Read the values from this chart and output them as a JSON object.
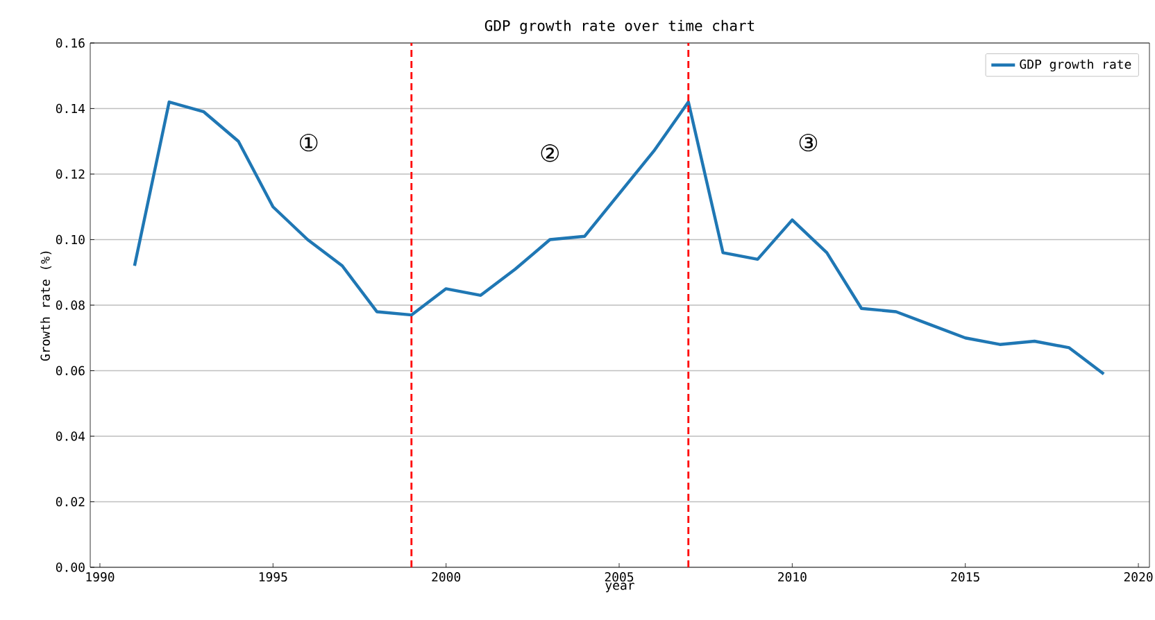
{
  "chart_data": {
    "type": "line",
    "title": "GDP growth rate over time chart",
    "xlabel": "year",
    "ylabel": "Growth rate (%)",
    "x": [
      1991,
      1992,
      1993,
      1994,
      1995,
      1996,
      1997,
      1998,
      1999,
      2000,
      2001,
      2002,
      2003,
      2004,
      2005,
      2006,
      2007,
      2008,
      2009,
      2010,
      2011,
      2012,
      2013,
      2014,
      2015,
      2016,
      2017,
      2018,
      2019
    ],
    "series": [
      {
        "name": "GDP growth rate",
        "color": "#1f77b4",
        "values": [
          0.092,
          0.142,
          0.139,
          0.13,
          0.11,
          0.1,
          0.092,
          0.078,
          0.077,
          0.085,
          0.083,
          0.091,
          0.1,
          0.101,
          0.114,
          0.127,
          0.142,
          0.096,
          0.094,
          0.106,
          0.096,
          0.079,
          0.078,
          0.074,
          0.07,
          0.068,
          0.069,
          0.067,
          0.059
        ]
      }
    ],
    "xlim": [
      1989.72,
      2020.32
    ],
    "xticks": [
      1990,
      1995,
      2000,
      2005,
      2010,
      2015,
      2020
    ],
    "ylim": [
      0,
      0.16
    ],
    "yticks": [
      {
        "value": 0,
        "label": "0.00"
      },
      {
        "value": 0.02,
        "label": "0.02"
      },
      {
        "value": 0.04,
        "label": "0.04"
      },
      {
        "value": 0.06,
        "label": "0.06"
      },
      {
        "value": 0.08,
        "label": "0.08"
      },
      {
        "value": 0.1,
        "label": "0.10"
      },
      {
        "value": 0.12,
        "label": "0.12"
      },
      {
        "value": 0.14,
        "label": "0.14"
      },
      {
        "value": 0.16,
        "label": "0.16"
      }
    ],
    "ref_lines": [
      {
        "axis": "x",
        "value": 1999,
        "color": "#ff0000",
        "line_style": "dashed"
      },
      {
        "axis": "x",
        "value": 2007,
        "color": "#ff0000",
        "line_style": "dashed"
      }
    ],
    "annotations": [
      "①",
      "②",
      "③"
    ],
    "grid": "y",
    "legend": "top right"
  }
}
